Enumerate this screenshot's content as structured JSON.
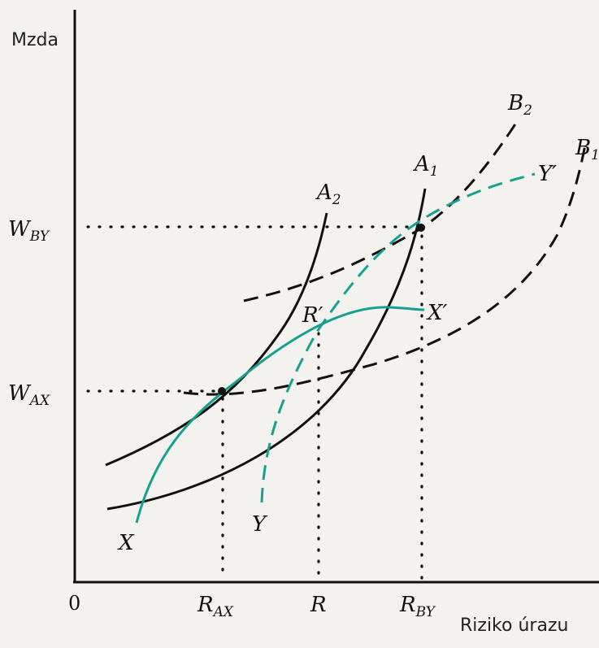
{
  "axes": {
    "y_label": "Mzda",
    "x_label": "Riziko úrazu",
    "origin": "0"
  },
  "y_ticks": {
    "w_by": {
      "main": "W",
      "sub": "BY"
    },
    "w_ax": {
      "main": "W",
      "sub": "AX"
    }
  },
  "x_ticks": {
    "r_ax": {
      "main": "R",
      "sub": "AX"
    },
    "r": {
      "main": "R"
    },
    "r_by": {
      "main": "R",
      "sub": "BY"
    }
  },
  "curve_labels": {
    "a1": {
      "main": "A",
      "sub": "1"
    },
    "a2": {
      "main": "A",
      "sub": "2"
    },
    "b1": {
      "main": "B",
      "sub": "1"
    },
    "b2": {
      "main": "B",
      "sub": "2"
    },
    "x": "X",
    "x_prime": "X′",
    "y": "Y",
    "y_prime": "Y′",
    "r_prime": "R′"
  },
  "colors": {
    "background": "#f3f2ef",
    "ink": "#111111",
    "offer_curve": "#16a08e"
  }
}
